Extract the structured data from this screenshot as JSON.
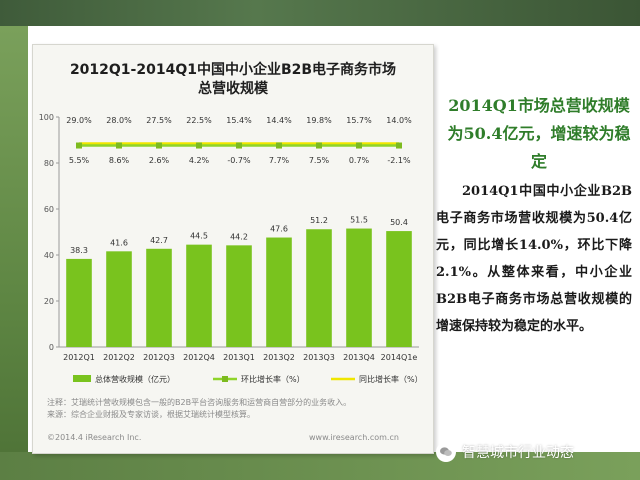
{
  "chart_data": {
    "type": "bar",
    "title": "2012Q1-2014Q1中国中小企业B2B电子商务市场\n总营收规模",
    "categories": [
      "2012Q1",
      "2012Q2",
      "2012Q3",
      "2012Q4",
      "2013Q1",
      "2013Q2",
      "2013Q3",
      "2013Q4",
      "2014Q1e"
    ],
    "ylim": [
      0,
      100
    ],
    "yticks": [
      0,
      20,
      40,
      60,
      80,
      100
    ],
    "series": [
      {
        "name": "总体营收规模（亿元）",
        "kind": "bar",
        "color": "#79c31e",
        "values": [
          38.3,
          41.6,
          42.7,
          44.5,
          44.2,
          47.6,
          51.2,
          51.5,
          50.4
        ],
        "labels": [
          "38.3",
          "41.6",
          "42.7",
          "44.5",
          "44.2",
          "47.6",
          "51.2",
          "51.5",
          "50.4"
        ]
      },
      {
        "name": "环比增长率（%）",
        "kind": "line",
        "color": "#8fd42a",
        "labels": [
          "5.5%",
          "8.6%",
          "2.6%",
          "4.2%",
          "-0.7%",
          "7.7%",
          "7.5%",
          "0.7%",
          "-2.1%"
        ]
      },
      {
        "name": "同比增长率（%）",
        "kind": "line",
        "color": "#f0e600",
        "labels": [
          "29.0%",
          "28.0%",
          "27.5%",
          "22.5%",
          "15.4%",
          "14.4%",
          "19.8%",
          "15.7%",
          "14.0%"
        ]
      }
    ]
  },
  "footnotes": [
    "注释：艾瑞统计营收规模包含一般的B2B平台咨询服务和运营商自营部分的业务收入。",
    "来源：综合企业财报及专家访谈，根据艾瑞统计模型核算。"
  ],
  "copyright": "©2014.4 iResearch Inc.",
  "site": "www.iresearch.com.cn",
  "right_panel": {
    "heading": "2014Q1市场总营收规模为50.4亿元，增速较为稳定",
    "body": "2014Q1中国中小企业B2B电子商务市场营收规模为50.4亿元，同比增长14.0%，环比下降2.1%。从整体来看，中小企业B2B电子商务市场总营收规模的增速保持较为稳定的水平。"
  },
  "watermark": {
    "text": "智慧城市行业动态",
    "icon": "wechat-icon"
  },
  "colors": {
    "accent_green": "#2f7d2a",
    "bar_green": "#79c31e",
    "frame_green": "#56784d"
  }
}
